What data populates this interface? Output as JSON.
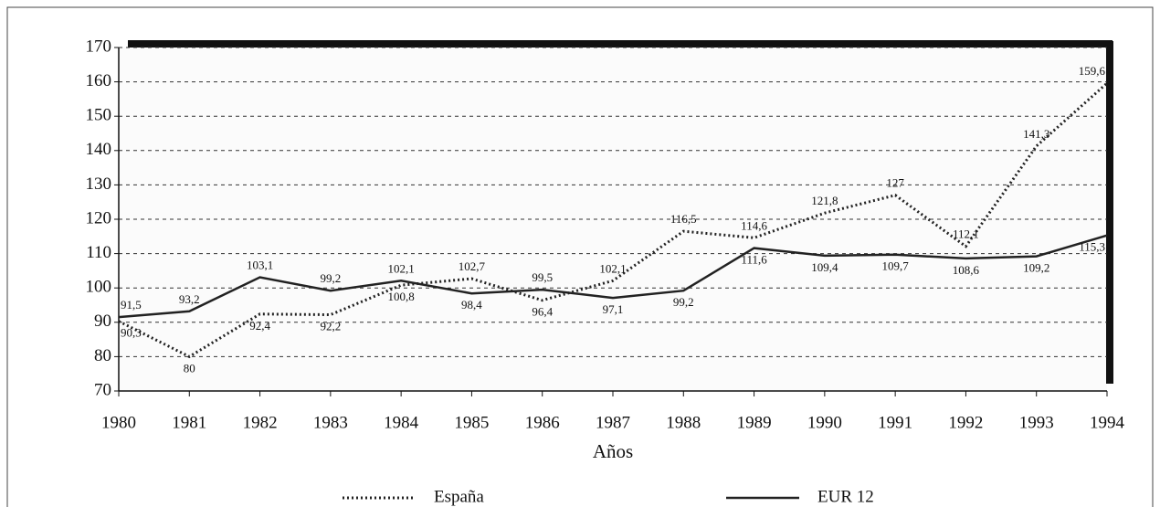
{
  "chart_data": {
    "type": "line",
    "xlabel": "Años",
    "categories": [
      "1980",
      "1981",
      "1982",
      "1983",
      "1984",
      "1985",
      "1986",
      "1987",
      "1988",
      "1989",
      "1990",
      "1991",
      "1992",
      "1993",
      "1994"
    ],
    "series": [
      {
        "name": "España",
        "color": "#222222",
        "style": "dotted",
        "values": [
          90.3,
          80,
          92.4,
          92.2,
          100.8,
          102.7,
          96.4,
          102.1,
          116.5,
          114.6,
          121.8,
          127,
          112.1,
          141.3,
          159.6
        ],
        "value_labels": [
          "90,3",
          "80",
          "92,4",
          "92,2",
          "100,8",
          "102,7",
          "96,4",
          "102,1",
          "116,5",
          "114,6",
          "121,8",
          "127",
          "112,1",
          "141,3",
          "159,6"
        ]
      },
      {
        "name": "EUR 12",
        "color": "#222222",
        "style": "solid",
        "values": [
          91.5,
          93.2,
          103.1,
          99.2,
          102.1,
          98.4,
          99.5,
          97.1,
          99.2,
          111.6,
          109.4,
          109.7,
          108.6,
          109.2,
          115.3
        ],
        "value_labels": [
          "91,5",
          "93,2",
          "103,1",
          "99,2",
          "102,1",
          "98,4",
          "99,5",
          "97,1",
          "99,2",
          "111,6",
          "109,4",
          "109,7",
          "108,6",
          "109,2",
          "115,3"
        ]
      }
    ],
    "ylim": [
      70,
      170
    ],
    "yticks": [
      70,
      80,
      90,
      100,
      110,
      120,
      130,
      140,
      150,
      160,
      170
    ],
    "grid": true,
    "legend": "bottom"
  }
}
